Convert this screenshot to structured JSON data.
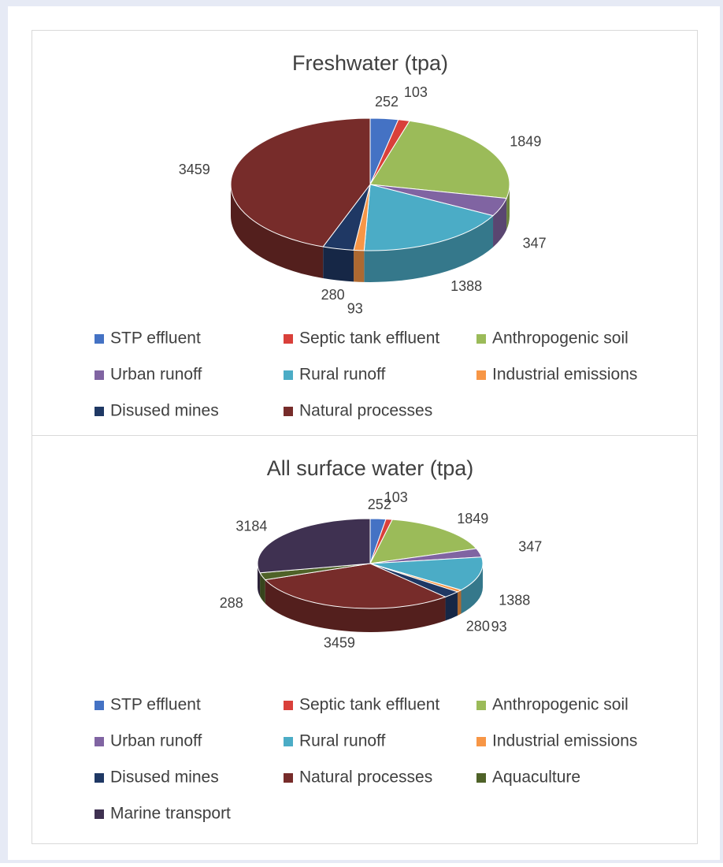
{
  "chart_data": [
    {
      "type": "pie",
      "title": "Freshwater (tpa)",
      "categories": [
        "STP effluent",
        "Septic tank effluent",
        "Anthropogenic soil",
        "Urban runoff",
        "Rural runoff",
        "Industrial emissions",
        "Disused mines",
        "Natural processes"
      ],
      "values": [
        252,
        103,
        1849,
        347,
        1388,
        93,
        280,
        3459
      ],
      "colors": [
        "#4472c4",
        "#d9403a",
        "#9bbb59",
        "#8064a2",
        "#4bacc6",
        "#f79646",
        "#1f3864",
        "#772c2a"
      ]
    },
    {
      "type": "pie",
      "title": "All surface water (tpa)",
      "categories": [
        "STP effluent",
        "Septic tank effluent",
        "Anthropogenic soil",
        "Urban runoff",
        "Rural runoff",
        "Industrial emissions",
        "Disused mines",
        "Natural processes",
        "Aquaculture",
        "Marine transport"
      ],
      "values": [
        252,
        103,
        1849,
        347,
        1388,
        93,
        280,
        3459,
        288,
        3184
      ],
      "colors": [
        "#4472c4",
        "#d9403a",
        "#9bbb59",
        "#8064a2",
        "#4bacc6",
        "#f79646",
        "#1f3864",
        "#772c2a",
        "#4f6228",
        "#3f3151"
      ]
    }
  ]
}
